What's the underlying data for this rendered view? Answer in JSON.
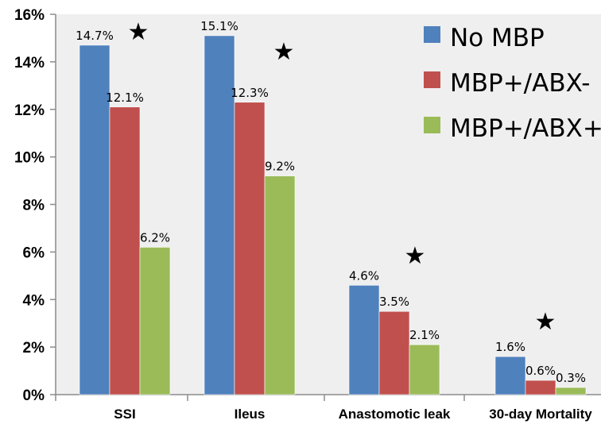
{
  "chart_data": {
    "type": "bar",
    "title": "",
    "xlabel": "",
    "ylabel": "",
    "ylim": [
      0,
      16
    ],
    "y_tick_labels": [
      "0%",
      "2%",
      "4%",
      "6%",
      "8%",
      "10%",
      "12%",
      "14%",
      "16%"
    ],
    "categories": [
      "SSI",
      "Ileus",
      "Anastomotic leak",
      "30-day Mortality"
    ],
    "series": [
      {
        "name": "No MBP",
        "color": "#4f81bd",
        "values": [
          14.7,
          15.1,
          4.6,
          1.6
        ],
        "labels": [
          "14.7%",
          "15.1%",
          "4.6%",
          "1.6%"
        ]
      },
      {
        "name": "MBP+/ABX-",
        "color": "#c0504d",
        "values": [
          12.1,
          12.3,
          3.5,
          0.6
        ],
        "labels": [
          "12.1%",
          "12.3%",
          "3.5%",
          "0.6%"
        ]
      },
      {
        "name": "MBP+/ABX+",
        "color": "#9bbb59",
        "values": [
          6.2,
          9.2,
          2.1,
          0.3
        ],
        "labels": [
          "6.2%",
          "9.2%",
          "2.1%",
          "0.3%"
        ]
      }
    ],
    "significance_markers": [
      "★",
      "★",
      "★",
      "★"
    ],
    "grid": false,
    "legend_position": "top-right"
  }
}
